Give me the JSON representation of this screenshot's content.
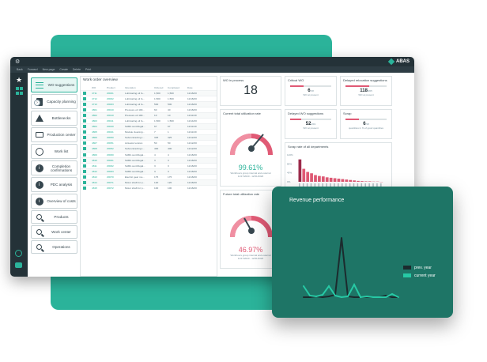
{
  "app": {
    "brand": "ABAS",
    "toolbar": [
      "Back",
      "Forward",
      "New page",
      "Create",
      "Delete",
      "Print"
    ]
  },
  "nav": [
    {
      "label": "WO suggestions",
      "icon": "menu-icon"
    },
    {
      "label": "Capacity planning",
      "icon": "document-icon"
    },
    {
      "label": "Bottlenecks",
      "icon": "warning-icon"
    },
    {
      "label": "Production center",
      "icon": "monitor-icon"
    },
    {
      "label": "Work list",
      "icon": "clock-icon"
    },
    {
      "label": "Completion confirmations",
      "icon": "info-icon"
    },
    {
      "label": "PDC analysis",
      "icon": "info-icon"
    },
    {
      "label": "Overview of costs",
      "icon": "info-icon"
    },
    {
      "label": "Products",
      "icon": "search-icon"
    },
    {
      "label": "Work center",
      "icon": "search-icon"
    },
    {
      "label": "Operations",
      "icon": "search-icon"
    }
  ],
  "work_order": {
    "title": "Work order overview",
    "columns": [
      "",
      "WO",
      "Product",
      "Operation",
      "Ordered",
      "Completed",
      "Date"
    ],
    "rows": [
      [
        "",
        "4711",
        "Z0001",
        "Lubricating oil fo...",
        "1,500",
        "1,500",
        "11/18/20"
      ],
      [
        "",
        "4712",
        "Z0002",
        "Lubricating oil fo...",
        "1,500",
        "1,500",
        "11/18/20"
      ],
      [
        "",
        "4713",
        "Z0003",
        "Lubricating oil fo...",
        "500",
        "500",
        "11/18/20"
      ],
      [
        "",
        "4801",
        "Z0010",
        "Pressure oil 100...",
        "60",
        "40",
        "11/18/20"
      ],
      [
        "",
        "4802",
        "Z0010",
        "Pressure oil 100...",
        "10",
        "10",
        "11/11/20"
      ],
      [
        "",
        "4803",
        "Z0011",
        "Lubricating oil fo...",
        "1,500",
        "1,500",
        "11/14/20"
      ],
      [
        "",
        "4804",
        "Z0040",
        "SABA centrifugal...",
        "67",
        "67",
        "11/11/20"
      ],
      [
        "",
        "4805",
        "Z0041",
        "Module cleaning...",
        "7",
        "1",
        "11/11/20"
      ],
      [
        "",
        "4806",
        "Z0050",
        "Subcontracting t...",
        "325",
        "325",
        "11/12/20"
      ],
      [
        "",
        "4807",
        "Z0051",
        "Actuator tension",
        "50",
        "50",
        "11/12/20"
      ],
      [
        "",
        "4808",
        "Z0052",
        "Subcontracting t...",
        "400",
        "400",
        "11/12/20"
      ],
      [
        "",
        "4809",
        "Z0060",
        "SABA centrifugal...",
        "4",
        "4",
        "11/18/20"
      ],
      [
        "",
        "4810",
        "Z0061",
        "SABA centrifugal...",
        "3",
        "3",
        "11/18/20"
      ],
      [
        "",
        "4811",
        "Z0062",
        "SABA centrifugal...",
        "3",
        "3",
        "11/18/20"
      ],
      [
        "",
        "4812",
        "Z0063",
        "SABA centrifugal...",
        "3",
        "3",
        "11/18/20"
      ],
      [
        "",
        "4813",
        "Z0070",
        "Electric gear mo...",
        "175",
        "175",
        "11/18/20"
      ],
      [
        "",
        "4814",
        "Z0071",
        "Motor shaft for p...",
        "120",
        "120",
        "11/18/20"
      ],
      [
        "",
        "4815",
        "Z0072",
        "Motor shaft for p...",
        "100",
        "100",
        "11/18/20"
      ]
    ]
  },
  "wip": {
    "title": "WO in process",
    "value": "18"
  },
  "util1": {
    "title": "Current total utilization rate",
    "value": "99.61%",
    "sub1": "Workhours group internal and external",
    "sub2": "11/17/2020 - 12/31/2020",
    "ticks": [
      "60%",
      "80%",
      "100%",
      "120%",
      "140%",
      "0%",
      "20%",
      "160%"
    ]
  },
  "util2": {
    "title": "Future total utilization rate",
    "value": "46.97%",
    "sub1": "Workhours group internal and external",
    "sub2": "11/17/2020 - 12/31/2020"
  },
  "critical": {
    "title": "Critical WO",
    "value": "6",
    "unit": "/18",
    "sub": "WO at present"
  },
  "delayed_release": {
    "title": "Delayed relocation suggestions",
    "value": "118",
    "unit": "/205",
    "sub": "WO at present"
  },
  "delayed_wo": {
    "title": "Delayed WO suggestions",
    "value": "52",
    "unit": "/201",
    "sub": "WO at present"
  },
  "scrap": {
    "title": "Scrap",
    "value": "6",
    "unit": "/18",
    "sub": "quantities in % of good quantities"
  },
  "scrap_rate": {
    "title": "Scrap rate of all departments",
    "chart_data": {
      "type": "bar",
      "values": [
        100,
        58,
        44,
        38,
        30,
        26,
        24,
        20,
        18,
        16,
        14,
        12,
        10,
        8,
        6,
        4,
        3,
        2,
        2,
        1,
        1,
        0
      ],
      "ylim": [
        0,
        120
      ],
      "yticks": [
        "120%",
        "80%",
        "40%",
        "0%"
      ]
    }
  },
  "revenue": {
    "title": "Revenue performance",
    "chart_data": {
      "type": "line",
      "series": [
        {
          "name": "prev. year",
          "values": [
            0,
            0,
            1,
            0,
            1,
            3,
            75,
            1,
            0,
            0,
            0,
            0,
            0,
            2,
            0,
            0
          ]
        },
        {
          "name": "current year",
          "values": [
            14,
            2,
            1,
            3,
            14,
            2,
            0,
            1,
            16,
            0,
            1,
            0,
            0,
            0,
            4,
            0
          ]
        }
      ],
      "ylim": [
        0,
        100
      ]
    },
    "colors": {
      "prev": "#1c2b2e",
      "current": "#27c9a5"
    }
  }
}
